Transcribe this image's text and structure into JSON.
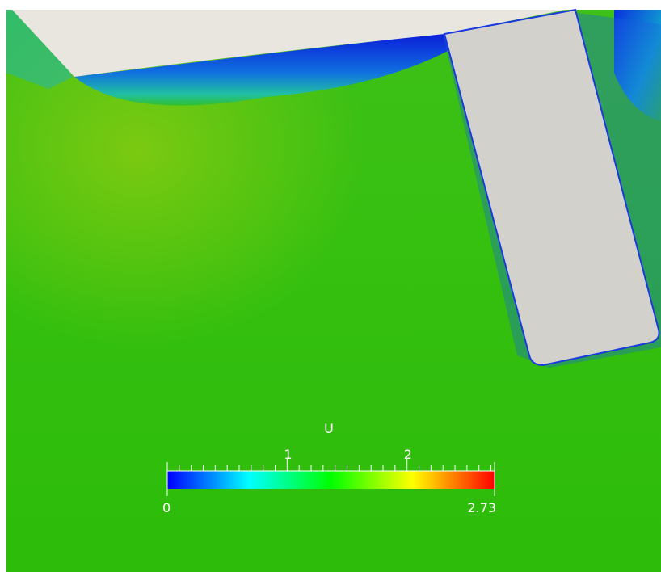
{
  "colorbar": {
    "title": "U",
    "range": [
      0,
      2.73
    ],
    "ticks": [
      1,
      2
    ],
    "minor_ticks": [
      0.1,
      0.2,
      0.3,
      0.4,
      0.5,
      0.6,
      0.7,
      0.8,
      0.9,
      1.1,
      1.2,
      1.3,
      1.4,
      1.5,
      1.6,
      1.7,
      1.8,
      1.9,
      2.1,
      2.2,
      2.3,
      2.4,
      2.5,
      2.6,
      2.7
    ],
    "colormap": [
      "#0000ff",
      "#00ffff",
      "#00ff00",
      "#ffff00",
      "#ff0000"
    ]
  }
}
